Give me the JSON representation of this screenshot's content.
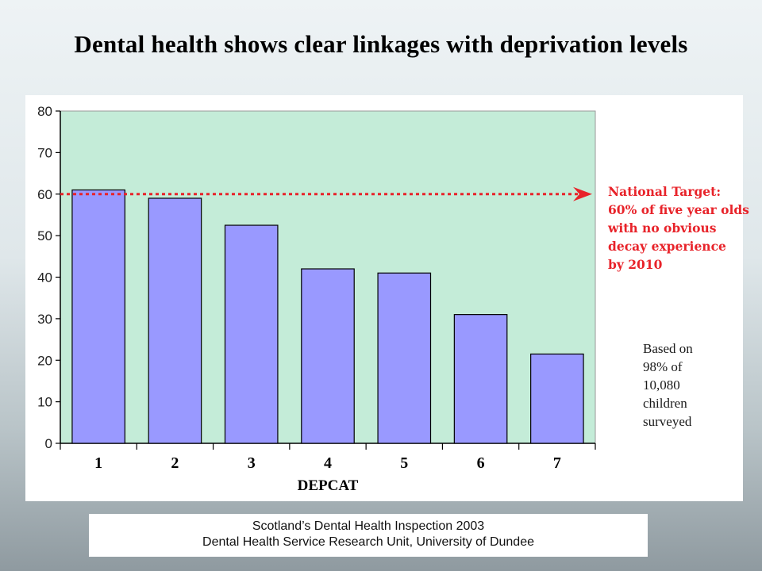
{
  "slide": {
    "title": "Dental health shows clear linkages with deprivation levels"
  },
  "annotation": {
    "lines": [
      "National Target:",
      "60% of five year olds",
      "with no obvious",
      "decay experience",
      "by 2010"
    ]
  },
  "source_note": {
    "lines": [
      "Based on",
      "98% of",
      "10,080",
      "children",
      "surveyed"
    ]
  },
  "citation": {
    "line1": "Scotland’s Dental Health Inspection 2003",
    "line2": "Dental Health Service Research Unit, University of Dundee"
  },
  "colors": {
    "plot_background": "#c4ecd8",
    "bar_fill": "#9999ff",
    "bar_stroke": "#000000",
    "target_line": "#e8232a"
  },
  "chart_data": {
    "type": "bar",
    "categories": [
      "1",
      "2",
      "3",
      "4",
      "5",
      "6",
      "7"
    ],
    "values": [
      61,
      59,
      52.5,
      42,
      41,
      31,
      21.5
    ],
    "xlabel": "DEPCAT",
    "ylabel": "",
    "ylim": [
      0,
      80
    ],
    "yticks": [
      0,
      10,
      20,
      30,
      40,
      50,
      60,
      70,
      80
    ],
    "reference_line": {
      "value": 60
    },
    "grid": false
  }
}
